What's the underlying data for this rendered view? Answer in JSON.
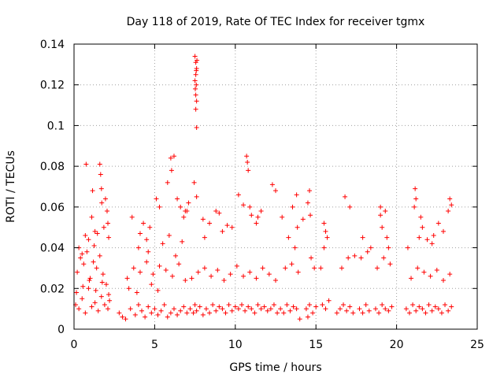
{
  "colors": {
    "series": "#ff0000",
    "grid": "#a0a0a0",
    "axis": "#000000"
  },
  "chart_data": {
    "type": "scatter",
    "title": "Day 118 of 2019, Rate Of TEC Index for receiver tgmx",
    "xlabel": "GPS time / hours",
    "ylabel": "ROTI / TECUs",
    "xlim": [
      0,
      25
    ],
    "ylim": [
      0,
      0.14
    ],
    "xticks": [
      0,
      5,
      10,
      15,
      20,
      25
    ],
    "yticks": [
      0,
      0.02,
      0.04,
      0.06,
      0.08,
      0.1,
      0.12,
      0.14
    ],
    "xtick_labels": [
      "0",
      "5",
      "10",
      "15",
      "20",
      "25"
    ],
    "ytick_labels": [
      "0",
      "0.02",
      "0.04",
      "0.06",
      "0.08",
      "0.1",
      "0.12",
      "0.14"
    ],
    "grid": true,
    "marker": "+",
    "series": [
      {
        "name": "ROTI",
        "x": [
          0.1,
          0.3,
          0.5,
          0.7,
          0.9,
          1.1,
          1.3,
          1.5,
          1.7,
          1.9,
          2.1,
          2.2,
          0.2,
          0.6,
          1.0,
          1.4,
          1.8,
          2.0,
          0.4,
          0.8,
          1.2,
          1.6,
          0.15,
          0.55,
          0.95,
          1.35,
          1.75,
          2.15,
          0.7,
          0.75,
          1.1,
          1.15,
          1.3,
          1.6,
          1.65,
          1.7,
          1.72,
          1.95,
          2.05,
          2.1,
          2.15,
          0.3,
          0.5,
          0.9,
          1.25,
          1.45,
          1.85,
          2.8,
          3.0,
          3.2,
          3.5,
          3.8,
          4.0,
          4.2,
          4.4,
          4.6,
          4.8,
          5.0,
          5.2,
          5.4,
          5.6,
          5.8,
          6.0,
          6.2,
          6.4,
          6.6,
          6.8,
          7.0,
          3.3,
          3.7,
          4.1,
          4.5,
          4.9,
          5.3,
          5.7,
          6.1,
          6.5,
          6.9,
          3.6,
          4.1,
          4.3,
          4.5,
          4.7,
          5.1,
          5.3,
          5.8,
          6.0,
          6.05,
          6.2,
          6.4,
          6.6,
          6.8,
          6.9,
          4.0,
          4.6,
          5.5,
          5.9,
          6.3,
          6.7,
          3.4,
          3.9,
          4.8,
          5.2,
          7.2,
          7.4,
          7.5,
          7.6,
          7.8,
          8.0,
          8.2,
          8.4,
          8.6,
          8.8,
          9.0,
          9.2,
          9.4,
          9.6,
          9.8,
          10.0,
          10.2,
          10.4,
          10.6,
          10.8,
          11.0,
          11.2,
          11.4,
          11.6,
          11.8,
          12.0,
          12.2,
          12.4,
          12.6,
          7.3,
          7.7,
          8.1,
          8.5,
          8.9,
          9.3,
          9.7,
          10.1,
          10.5,
          10.9,
          11.3,
          11.7,
          12.1,
          12.5,
          7.5,
          7.55,
          7.6,
          7.55,
          7.5,
          7.58,
          7.55,
          7.6,
          7.52,
          7.62,
          7.6,
          7.58,
          7.55,
          7.1,
          7.0,
          7.45,
          7.6,
          8.1,
          8.4,
          9.0,
          9.2,
          9.5,
          10.2,
          10.5,
          10.7,
          10.75,
          10.8,
          10.9,
          11.0,
          11.3,
          11.4,
          11.6,
          12.3,
          12.5,
          8.0,
          8.8,
          9.8,
          12.8,
          13.0,
          13.2,
          13.4,
          13.6,
          13.8,
          14.0,
          13.1,
          13.5,
          13.9,
          13.3,
          13.7,
          12.9,
          13.55,
          13.8,
          14.2,
          13.85,
          14.4,
          14.5,
          14.6,
          14.8,
          15.0,
          14.7,
          14.9,
          14.6,
          14.5,
          14.65,
          15.4,
          15.6,
          15.8,
          15.5,
          15.7,
          15.5,
          15.6,
          15.3,
          16.3,
          16.5,
          16.7,
          16.9,
          17.1,
          17.3,
          16.6,
          17.0,
          17.4,
          16.8,
          17.1,
          17.7,
          17.9,
          18.1,
          18.3,
          17.8,
          18.2,
          17.9,
          18.4,
          18.7,
          18.9,
          19.1,
          19.3,
          19.5,
          19.7,
          18.8,
          19.2,
          19.6,
          19.0,
          19.1,
          19.4,
          19.3,
          19.0,
          19.5,
          20.6,
          20.8,
          21.0,
          21.2,
          21.4,
          21.6,
          21.8,
          22.0,
          22.2,
          22.4,
          22.6,
          22.8,
          23.0,
          23.2,
          23.4,
          20.9,
          21.3,
          21.7,
          22.1,
          22.5,
          22.9,
          23.3,
          21.15,
          21.2,
          21.1,
          21.5,
          21.6,
          21.4,
          22.3,
          22.6,
          23.3,
          23.4,
          23.2,
          20.7,
          22.9,
          21.9,
          22.2
        ],
        "y": [
          0.012,
          0.01,
          0.015,
          0.008,
          0.02,
          0.011,
          0.013,
          0.009,
          0.016,
          0.012,
          0.01,
          0.014,
          0.028,
          0.032,
          0.025,
          0.03,
          0.027,
          0.022,
          0.035,
          0.038,
          0.033,
          0.036,
          0.018,
          0.021,
          0.024,
          0.019,
          0.023,
          0.017,
          0.046,
          0.081,
          0.055,
          0.068,
          0.048,
          0.081,
          0.076,
          0.069,
          0.062,
          0.064,
          0.058,
          0.052,
          0.045,
          0.04,
          0.037,
          0.044,
          0.041,
          0.047,
          0.05,
          0.008,
          0.006,
          0.005,
          0.01,
          0.007,
          0.012,
          0.009,
          0.006,
          0.011,
          0.008,
          0.01,
          0.007,
          0.009,
          0.012,
          0.006,
          0.008,
          0.01,
          0.007,
          0.009,
          0.011,
          0.008,
          0.025,
          0.03,
          0.028,
          0.033,
          0.027,
          0.031,
          0.029,
          0.026,
          0.032,
          0.024,
          0.055,
          0.047,
          0.052,
          0.044,
          0.05,
          0.064,
          0.06,
          0.072,
          0.084,
          0.078,
          0.085,
          0.064,
          0.06,
          0.055,
          0.058,
          0.04,
          0.038,
          0.042,
          0.046,
          0.036,
          0.043,
          0.02,
          0.018,
          0.022,
          0.019,
          0.01,
          0.008,
          0.012,
          0.009,
          0.011,
          0.007,
          0.01,
          0.008,
          0.012,
          0.009,
          0.011,
          0.01,
          0.008,
          0.012,
          0.009,
          0.011,
          0.01,
          0.012,
          0.009,
          0.011,
          0.01,
          0.008,
          0.012,
          0.01,
          0.011,
          0.009,
          0.01,
          0.012,
          0.008,
          0.025,
          0.028,
          0.03,
          0.026,
          0.029,
          0.024,
          0.027,
          0.031,
          0.026,
          0.028,
          0.025,
          0.03,
          0.027,
          0.024,
          0.134,
          0.131,
          0.128,
          0.125,
          0.122,
          0.12,
          0.108,
          0.099,
          0.118,
          0.132,
          0.112,
          0.127,
          0.115,
          0.062,
          0.058,
          0.072,
          0.065,
          0.045,
          0.052,
          0.057,
          0.048,
          0.051,
          0.066,
          0.061,
          0.085,
          0.082,
          0.078,
          0.06,
          0.056,
          0.052,
          0.055,
          0.058,
          0.071,
          0.068,
          0.054,
          0.058,
          0.05,
          0.01,
          0.008,
          0.012,
          0.009,
          0.011,
          0.01,
          0.005,
          0.03,
          0.032,
          0.028,
          0.045,
          0.04,
          0.055,
          0.06,
          0.066,
          0.054,
          0.05,
          0.01,
          0.006,
          0.012,
          0.008,
          0.011,
          0.035,
          0.03,
          0.068,
          0.062,
          0.056,
          0.012,
          0.01,
          0.014,
          0.04,
          0.045,
          0.052,
          0.048,
          0.03,
          0.008,
          0.01,
          0.012,
          0.009,
          0.011,
          0.008,
          0.03,
          0.035,
          0.036,
          0.065,
          0.06,
          0.01,
          0.008,
          0.012,
          0.009,
          0.035,
          0.038,
          0.045,
          0.04,
          0.01,
          0.008,
          0.012,
          0.01,
          0.009,
          0.011,
          0.03,
          0.035,
          0.032,
          0.056,
          0.05,
          0.045,
          0.058,
          0.06,
          0.04,
          0.01,
          0.008,
          0.012,
          0.009,
          0.011,
          0.01,
          0.008,
          0.012,
          0.009,
          0.011,
          0.01,
          0.008,
          0.012,
          0.009,
          0.011,
          0.025,
          0.03,
          0.028,
          0.026,
          0.029,
          0.024,
          0.027,
          0.069,
          0.064,
          0.06,
          0.055,
          0.05,
          0.045,
          0.046,
          0.052,
          0.064,
          0.061,
          0.058,
          0.04,
          0.048,
          0.044,
          0.042
        ]
      }
    ]
  }
}
